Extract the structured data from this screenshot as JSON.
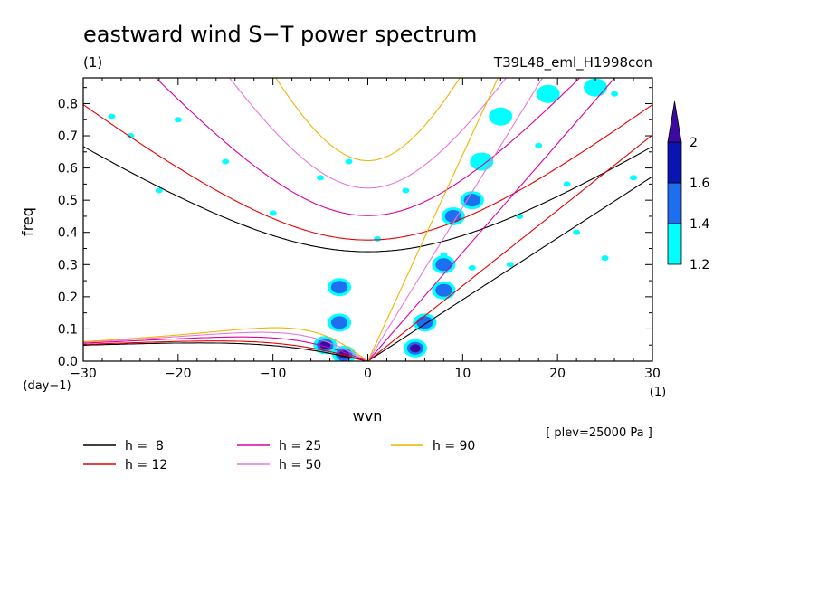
{
  "chart_data": {
    "type": "contour",
    "title": "eastward wind S−T power spectrum",
    "units_label": "(1)",
    "run_label": "T39L48_eml_H1998con",
    "xlabel": "wvn",
    "ylabel": "freq",
    "x_units": "(1)",
    "y_units": "(day−1)",
    "xlim": [
      -30,
      30
    ],
    "ylim": [
      0,
      0.88
    ],
    "xticks": [
      -30,
      -20,
      -10,
      0,
      10,
      20,
      30
    ],
    "yticks": [
      0.0,
      0.1,
      0.2,
      0.3,
      0.4,
      0.5,
      0.6,
      0.7,
      0.8
    ],
    "ytick_labels": [
      "0.0",
      "0.1",
      "0.2",
      "0.3",
      "0.4",
      "0.5",
      "0.6",
      "0.7",
      "0.8"
    ],
    "plev_note": "[ plev=25000 Pa ]",
    "colorbar": {
      "levels": [
        "1.2",
        "1.4",
        "1.6",
        "2"
      ],
      "colors": [
        "#00ffff",
        "#1e6ef0",
        "#0a14b4",
        "#3c0aa0"
      ]
    },
    "dispersion_curves": [
      {
        "label": "h =  8",
        "h": 8,
        "color": "#000000"
      },
      {
        "label": "h = 12",
        "h": 12,
        "color": "#e60000"
      },
      {
        "label": "h = 25",
        "h": 25,
        "color": "#dc00a0"
      },
      {
        "label": "h = 50",
        "h": 50,
        "color": "#e678dc"
      },
      {
        "label": "h = 90",
        "h": 90,
        "color": "#f0b400"
      }
    ],
    "spectral_patches": [
      {
        "x": -2.5,
        "y": 0.02,
        "level": 3
      },
      {
        "x": -4.5,
        "y": 0.05,
        "level": 3
      },
      {
        "x": -3,
        "y": 0.12,
        "level": 2
      },
      {
        "x": -3,
        "y": 0.23,
        "level": 2
      },
      {
        "x": 5,
        "y": 0.04,
        "level": 3
      },
      {
        "x": 6,
        "y": 0.12,
        "level": 2
      },
      {
        "x": 8,
        "y": 0.22,
        "level": 2
      },
      {
        "x": 8,
        "y": 0.3,
        "level": 2
      },
      {
        "x": 9,
        "y": 0.45,
        "level": 2
      },
      {
        "x": 11,
        "y": 0.5,
        "level": 2
      },
      {
        "x": 12,
        "y": 0.62,
        "level": 1
      },
      {
        "x": 14,
        "y": 0.76,
        "level": 1
      },
      {
        "x": 19,
        "y": 0.83,
        "level": 1
      },
      {
        "x": 24,
        "y": 0.85,
        "level": 1
      }
    ]
  }
}
